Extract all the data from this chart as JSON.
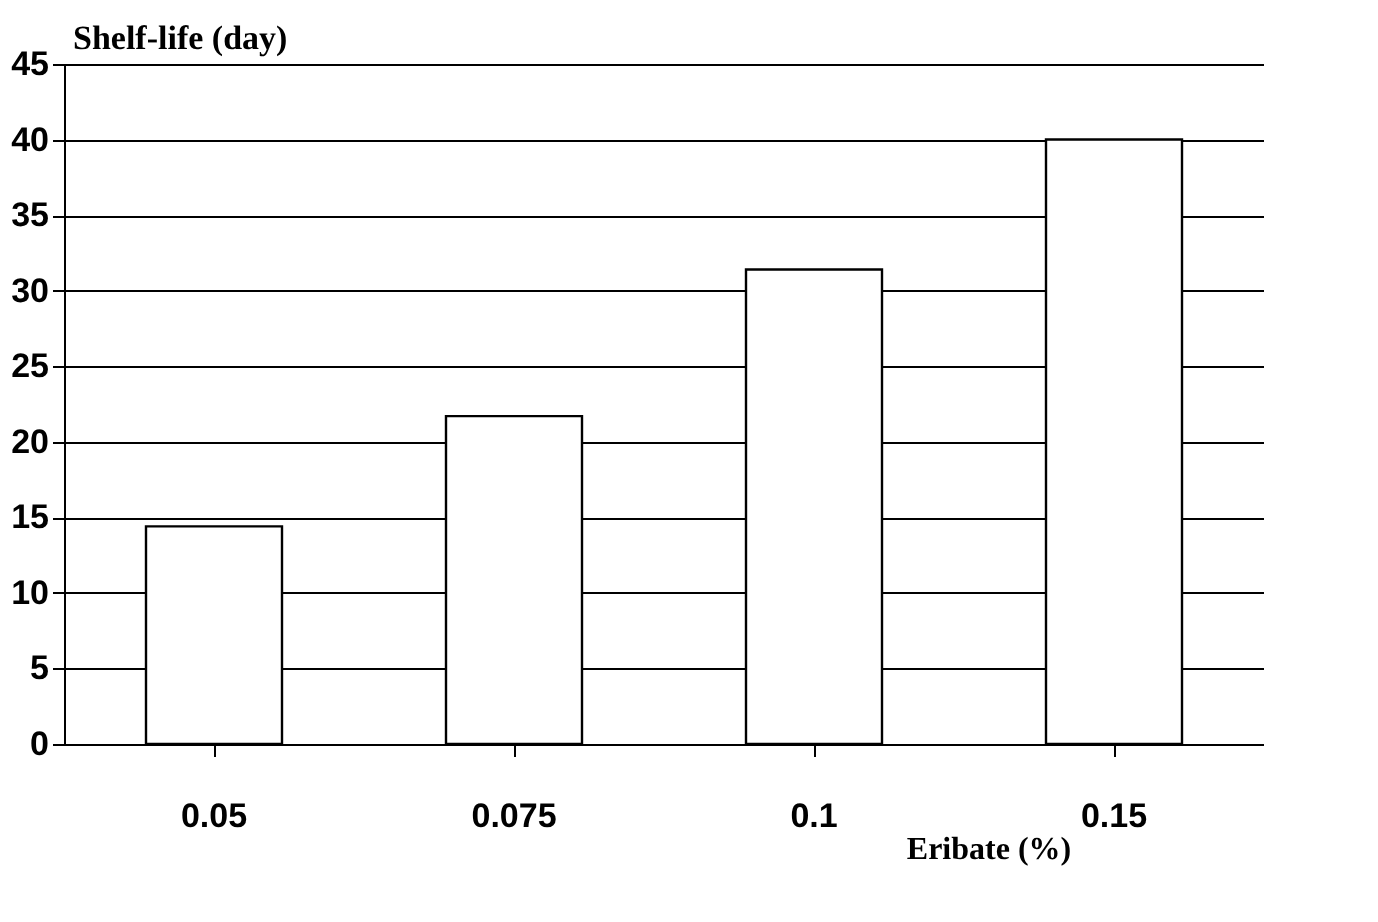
{
  "chart_data": {
    "type": "bar",
    "xlabel": "Eribate (%)",
    "ylabel": "Shelf-life (day)",
    "categories": [
      "0.05",
      "0.075",
      "0.1",
      "0.15"
    ],
    "values": [
      14.4,
      21.7,
      31.4,
      40
    ],
    "color": "#ffffff",
    "ylim": [
      0,
      45
    ],
    "yticks": [
      0,
      5,
      10,
      15,
      20,
      25,
      30,
      35,
      40,
      45
    ],
    "grid": "y"
  }
}
